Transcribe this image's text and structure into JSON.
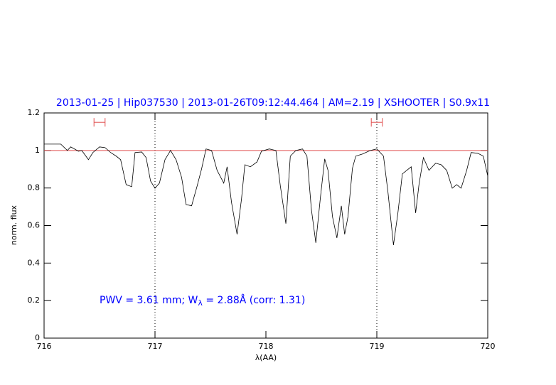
{
  "chart_data": {
    "type": "line",
    "title": "2013-01-25 | Hip037530 | 2013-01-26T09:12:44.464 | AM=2.19 | XSHOOTER | S0.9x11",
    "xlabel": "λ(AA)",
    "ylabel": "norm. flux",
    "annotation": [
      "PWV = 3.61 mm; W",
      "λ",
      " = 2.88Å (corr: 1.31)"
    ],
    "xlim": [
      716,
      720
    ],
    "xticks": [
      716,
      717,
      718,
      719,
      720
    ],
    "ylim": [
      0,
      1.2
    ],
    "yticks": [
      0,
      0.2,
      0.4,
      0.6,
      0.8,
      1,
      1.2
    ],
    "reference_line": 1,
    "reference_color": "#e05050",
    "vlines": [
      717,
      719
    ],
    "windows": [
      [
        716.45,
        716.55
      ],
      [
        718.95,
        719.05
      ]
    ],
    "window_y": 1.15,
    "x": [
      716.0,
      716.15,
      716.21,
      716.24,
      716.31,
      716.34,
      716.4,
      716.44,
      716.5,
      716.55,
      716.6,
      716.65,
      716.69,
      716.74,
      716.79,
      716.82,
      716.88,
      716.92,
      716.96,
      717.0,
      717.04,
      717.09,
      717.14,
      717.19,
      717.24,
      717.28,
      717.33,
      717.38,
      717.42,
      717.46,
      717.51,
      717.56,
      717.62,
      717.65,
      717.69,
      717.74,
      717.78,
      717.81,
      717.86,
      717.92,
      717.96,
      718.03,
      718.09,
      718.13,
      718.18,
      718.22,
      718.27,
      718.33,
      718.37,
      718.41,
      718.45,
      718.49,
      718.53,
      718.56,
      718.6,
      718.64,
      718.68,
      718.71,
      718.74,
      718.78,
      718.81,
      718.87,
      718.94,
      719.0,
      719.06,
      719.1,
      719.15,
      719.19,
      719.23,
      719.27,
      719.31,
      719.35,
      719.38,
      719.42,
      719.47,
      719.53,
      719.58,
      719.63,
      719.68,
      719.72,
      719.76,
      719.81,
      719.85,
      719.91,
      719.96,
      720.0
    ],
    "series": [
      {
        "color": "#000000",
        "values": [
          1.034,
          1.034,
          1.0,
          1.019,
          0.996,
          1.0,
          0.951,
          0.989,
          1.019,
          1.015,
          0.989,
          0.97,
          0.951,
          0.818,
          0.807,
          0.989,
          0.992,
          0.962,
          0.837,
          0.799,
          0.826,
          0.951,
          1.0,
          0.951,
          0.856,
          0.712,
          0.705,
          0.811,
          0.902,
          1.008,
          1.0,
          0.894,
          0.826,
          0.913,
          0.723,
          0.553,
          0.742,
          0.924,
          0.913,
          0.939,
          0.996,
          1.008,
          1.0,
          0.811,
          0.61,
          0.97,
          1.0,
          1.008,
          0.97,
          0.686,
          0.508,
          0.742,
          0.955,
          0.894,
          0.648,
          0.534,
          0.705,
          0.553,
          0.648,
          0.905,
          0.97,
          0.981,
          1.0,
          1.008,
          0.97,
          0.78,
          0.496,
          0.667,
          0.875,
          0.894,
          0.913,
          0.667,
          0.818,
          0.962,
          0.894,
          0.932,
          0.924,
          0.894,
          0.799,
          0.818,
          0.799,
          0.894,
          0.989,
          0.985,
          0.97,
          0.864
        ]
      }
    ]
  }
}
